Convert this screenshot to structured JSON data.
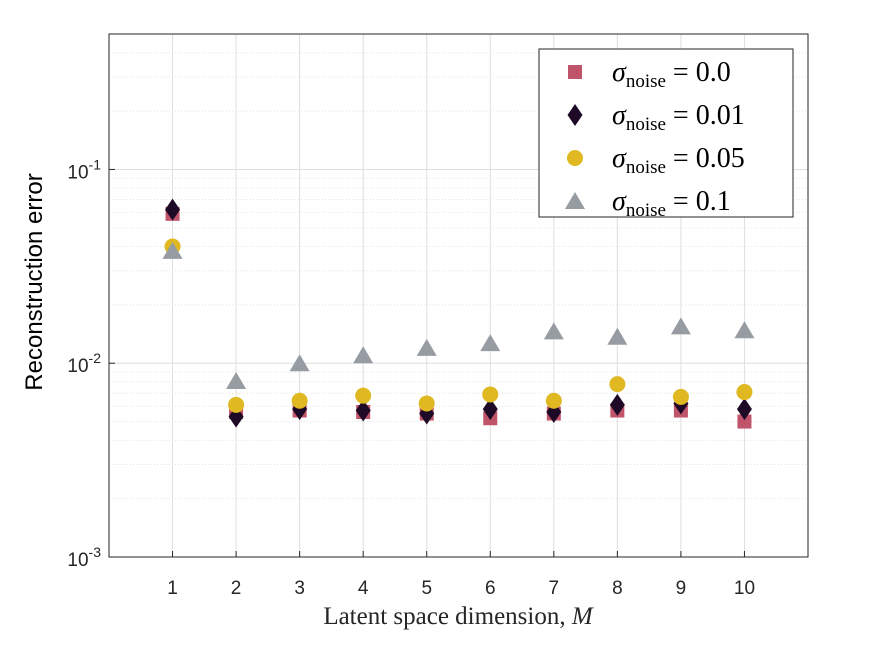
{
  "chart_data": {
    "type": "scatter",
    "title": "",
    "xlabel": "Latent space dimension, ",
    "xlabel_var": "M",
    "ylabel": "Reconstruction error",
    "yscale": "log",
    "ylim": [
      0.001,
      0.5
    ],
    "xlim": [
      0,
      11
    ],
    "grid": true,
    "legend_position": "top-right",
    "x_ticks": [
      "1",
      "2",
      "3",
      "4",
      "5",
      "6",
      "7",
      "8",
      "9",
      "10"
    ],
    "y_ticks": [
      {
        "value": 0.1,
        "base": "10",
        "exp": "-1"
      },
      {
        "value": 0.01,
        "base": "10",
        "exp": "-2"
      },
      {
        "value": 0.001,
        "base": "10",
        "exp": "-3"
      }
    ],
    "x": [
      1,
      2,
      3,
      4,
      5,
      6,
      7,
      8,
      9,
      10
    ],
    "series": [
      {
        "name_sym": "σ",
        "name_sub": "noise",
        "name_eq": " = 0.0",
        "marker": "square",
        "color": "#c0546a",
        "values": [
          0.059,
          0.0056,
          0.0057,
          0.0056,
          0.0055,
          0.0052,
          0.0055,
          0.0057,
          0.0057,
          0.005
        ]
      },
      {
        "name_sym": "σ",
        "name_sub": "noise",
        "name_eq": " = 0.01",
        "marker": "diamond",
        "color": "#1e0a26",
        "values": [
          0.062,
          0.0053,
          0.0058,
          0.0057,
          0.0055,
          0.0058,
          0.0056,
          0.0061,
          0.0062,
          0.0058
        ]
      },
      {
        "name_sym": "σ",
        "name_sub": "noise",
        "name_eq": " = 0.05",
        "marker": "circle",
        "color": "#e0b822",
        "values": [
          0.04,
          0.0061,
          0.0064,
          0.0068,
          0.0062,
          0.0069,
          0.0064,
          0.0078,
          0.0067,
          0.0071
        ]
      },
      {
        "name_sym": "σ",
        "name_sub": "noise",
        "name_eq": " = 0.1",
        "marker": "triangle",
        "color": "#979ca2",
        "values": [
          0.038,
          0.0081,
          0.01,
          0.011,
          0.012,
          0.0127,
          0.0146,
          0.0137,
          0.0155,
          0.0148
        ]
      }
    ]
  }
}
